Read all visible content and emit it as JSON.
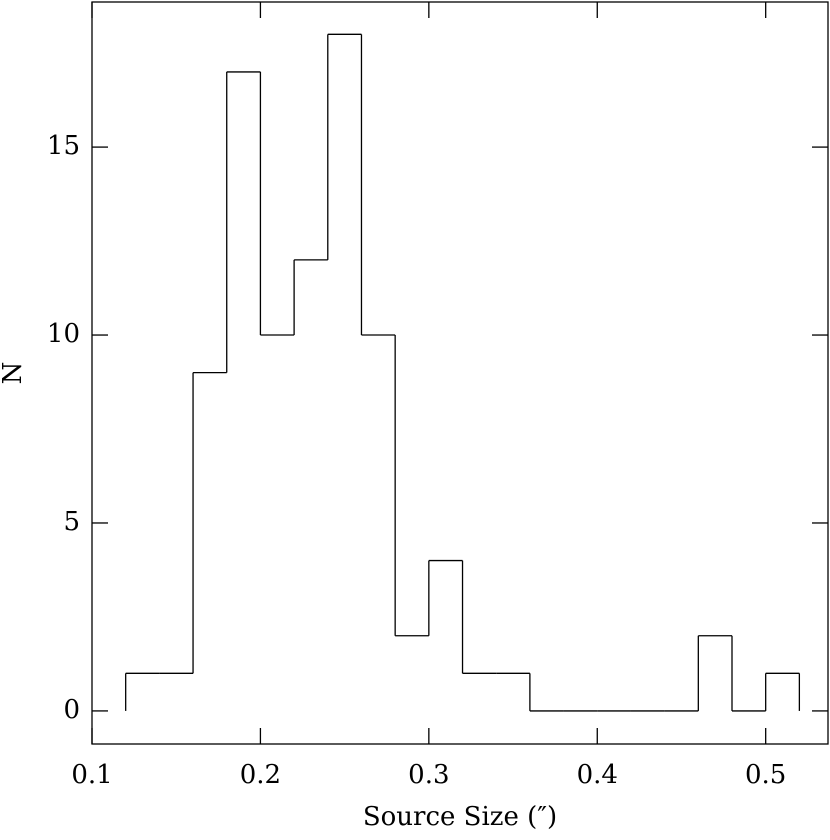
{
  "chart_data": {
    "type": "histogram",
    "x_label": "Source Size (″)",
    "y_label": "N",
    "bins": [
      0.12,
      0.14,
      0.16,
      0.18,
      0.2,
      0.22,
      0.24,
      0.26,
      0.28,
      0.3,
      0.32,
      0.34,
      0.36,
      0.38,
      0.4,
      0.42,
      0.44,
      0.46,
      0.48,
      0.5,
      0.52
    ],
    "values": [
      1,
      1,
      9,
      17,
      10,
      12,
      18,
      10,
      2,
      4,
      1,
      1,
      0,
      0,
      0,
      0,
      0,
      2,
      0,
      1
    ],
    "color": "#000000",
    "xlim": [
      0.1,
      0.537
    ],
    "xticks": [
      0.1,
      0.2,
      0.3,
      0.4,
      0.5
    ],
    "ylim": [
      -0.88,
      18.86
    ],
    "yticks": [
      0,
      5,
      10,
      15
    ]
  }
}
